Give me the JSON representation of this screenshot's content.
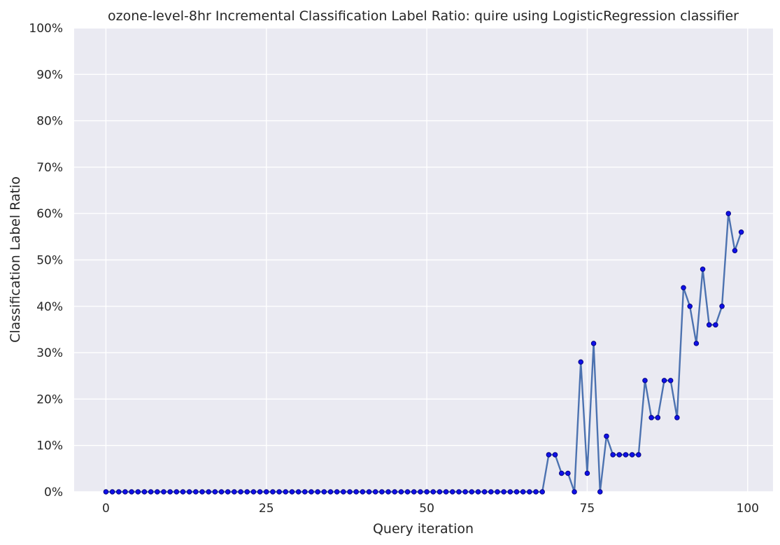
{
  "chart_data": {
    "type": "line",
    "title": "ozone-level-8hr Incremental Classification Label Ratio: quire using LogisticRegression classifier",
    "xlabel": "Query iteration",
    "ylabel": "Classification Label Ratio",
    "xlim": [
      -4.95,
      103.95
    ],
    "ylim": [
      0,
      100
    ],
    "xticks": [
      0,
      25,
      50,
      75,
      100
    ],
    "yticks": [
      0,
      10,
      20,
      30,
      40,
      50,
      60,
      70,
      80,
      90,
      100
    ],
    "ytick_format": "percent",
    "grid": true,
    "legend": "none",
    "colors": {
      "background": "#eaeaf2",
      "line": "#4c72b0",
      "marker": "#1010e8",
      "marker_edge": "#00007a"
    },
    "x": [
      0,
      1,
      2,
      3,
      4,
      5,
      6,
      7,
      8,
      9,
      10,
      11,
      12,
      13,
      14,
      15,
      16,
      17,
      18,
      19,
      20,
      21,
      22,
      23,
      24,
      25,
      26,
      27,
      28,
      29,
      30,
      31,
      32,
      33,
      34,
      35,
      36,
      37,
      38,
      39,
      40,
      41,
      42,
      43,
      44,
      45,
      46,
      47,
      48,
      49,
      50,
      51,
      52,
      53,
      54,
      55,
      56,
      57,
      58,
      59,
      60,
      61,
      62,
      63,
      64,
      65,
      66,
      67,
      68,
      69,
      70,
      71,
      72,
      73,
      74,
      75,
      76,
      77,
      78,
      79,
      80,
      81,
      82,
      83,
      84,
      85,
      86,
      87,
      88,
      89,
      90,
      91,
      92,
      93,
      94,
      95,
      96,
      97,
      98,
      99
    ],
    "values": [
      0,
      0,
      0,
      0,
      0,
      0,
      0,
      0,
      0,
      0,
      0,
      0,
      0,
      0,
      0,
      0,
      0,
      0,
      0,
      0,
      0,
      0,
      0,
      0,
      0,
      0,
      0,
      0,
      0,
      0,
      0,
      0,
      0,
      0,
      0,
      0,
      0,
      0,
      0,
      0,
      0,
      0,
      0,
      0,
      0,
      0,
      0,
      0,
      0,
      0,
      0,
      0,
      0,
      0,
      0,
      0,
      0,
      0,
      0,
      0,
      0,
      0,
      0,
      0,
      0,
      0,
      0,
      0,
      0,
      8,
      8,
      4,
      4,
      0,
      28,
      4,
      32,
      0,
      12,
      8,
      8,
      8,
      8,
      8,
      24,
      16,
      16,
      24,
      24,
      16,
      44,
      40,
      32,
      48,
      36,
      36,
      40,
      60,
      52,
      56
    ]
  }
}
